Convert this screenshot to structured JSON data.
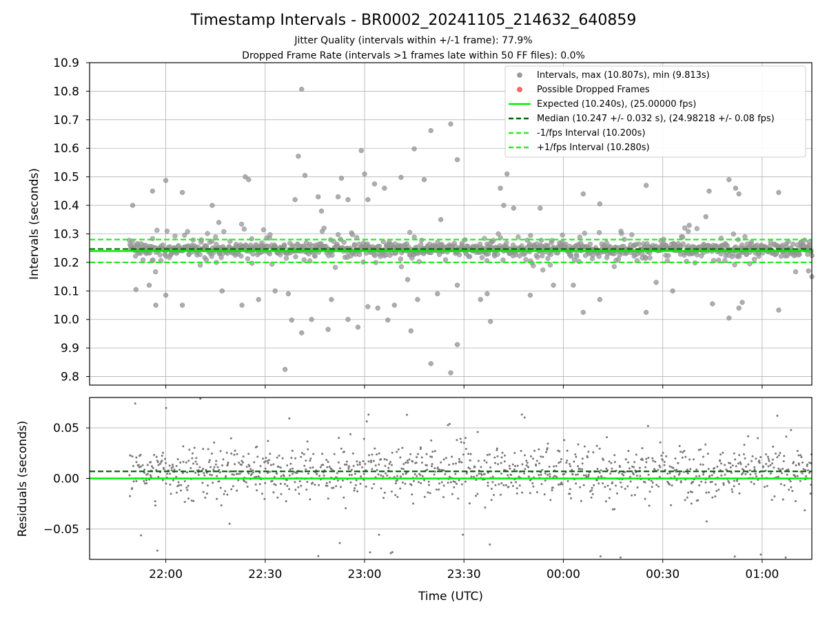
{
  "figure": {
    "title": "Timestamp Intervals - BR0002_20241105_214632_640859",
    "subtitle_1": "Jitter Quality (intervals within +/-1 frame): 77.9%",
    "subtitle_2": "Dropped Frame Rate (intervals >1 frames late within 50 FF files): 0.0%"
  },
  "chart_data": [
    {
      "type": "scatter",
      "panel": "top",
      "ylabel": "Intervals (seconds)",
      "ylim": [
        9.77,
        10.9
      ],
      "yticks": [
        "10.9",
        "10.8",
        "10.7",
        "10.6",
        "10.5",
        "10.4",
        "10.3",
        "10.2",
        "10.1",
        "10.0",
        "9.9",
        "9.8"
      ],
      "xlim": [
        "21:37",
        "01:15"
      ],
      "grid": true,
      "legend_position": "upper-right",
      "expected": 10.24,
      "median": 10.247,
      "minus_one": 10.2,
      "plus_one": 10.28,
      "legend": [
        "Intervals, max (10.807s), min (9.813s)",
        "Possible Dropped Frames",
        "Expected (10.240s), (25.00000 fps)",
        "Median (10.247 +/- 0.032 s), (24.98218 +/- 0.08 fps)",
        "-1/fps Interval (10.200s)",
        "+1/fps Interval (10.280s)"
      ],
      "series_color": "#999999",
      "outliers": [
        {
          "x": "22:41",
          "y": 10.807
        },
        {
          "x": "23:26",
          "y": 9.813
        },
        {
          "x": "23:20",
          "y": 9.845
        },
        {
          "x": "23:26",
          "y": 10.685
        },
        {
          "x": "23:20",
          "y": 10.662
        },
        {
          "x": "23:28",
          "y": 9.912
        },
        {
          "x": "22:36",
          "y": 9.825
        },
        {
          "x": "22:40",
          "y": 10.572
        },
        {
          "x": "22:38",
          "y": 9.998
        },
        {
          "x": "22:44",
          "y": 10.0
        },
        {
          "x": "23:14",
          "y": 9.96
        },
        {
          "x": "23:07",
          "y": 9.998
        },
        {
          "x": "22:00",
          "y": 10.487
        },
        {
          "x": "21:56",
          "y": 10.45
        },
        {
          "x": "22:05",
          "y": 10.445
        },
        {
          "x": "22:25",
          "y": 10.49
        },
        {
          "x": "22:24",
          "y": 10.5
        },
        {
          "x": "22:42",
          "y": 10.505
        },
        {
          "x": "22:53",
          "y": 10.495
        },
        {
          "x": "23:00",
          "y": 10.51
        },
        {
          "x": "23:11",
          "y": 10.498
        },
        {
          "x": "23:15",
          "y": 10.598
        },
        {
          "x": "22:59",
          "y": 10.592
        },
        {
          "x": "23:03",
          "y": 10.475
        },
        {
          "x": "23:18",
          "y": 10.49
        },
        {
          "x": "23:43",
          "y": 10.51
        },
        {
          "x": "23:41",
          "y": 10.46
        },
        {
          "x": "23:28",
          "y": 10.56
        },
        {
          "x": "22:39",
          "y": 10.42
        },
        {
          "x": "22:46",
          "y": 10.43
        },
        {
          "x": "22:52",
          "y": 10.43
        },
        {
          "x": "23:01",
          "y": 10.42
        },
        {
          "x": "23:06",
          "y": 10.46
        },
        {
          "x": "22:47",
          "y": 10.38
        },
        {
          "x": "22:55",
          "y": 10.42
        },
        {
          "x": "23:23",
          "y": 10.35
        },
        {
          "x": "22:14",
          "y": 10.4
        },
        {
          "x": "21:50",
          "y": 10.4
        },
        {
          "x": "22:16",
          "y": 10.34
        },
        {
          "x": "23:53",
          "y": 10.39
        },
        {
          "x": "23:45",
          "y": 10.39
        },
        {
          "x": "23:42",
          "y": 10.4
        },
        {
          "x": "00:06",
          "y": 10.44
        },
        {
          "x": "00:11",
          "y": 10.405
        },
        {
          "x": "00:25",
          "y": 10.47
        },
        {
          "x": "00:44",
          "y": 10.45
        },
        {
          "x": "00:50",
          "y": 10.49
        },
        {
          "x": "00:52",
          "y": 10.46
        },
        {
          "x": "00:53",
          "y": 10.44
        },
        {
          "x": "01:05",
          "y": 10.445
        },
        {
          "x": "00:38",
          "y": 10.33
        },
        {
          "x": "00:43",
          "y": 10.36
        },
        {
          "x": "21:51",
          "y": 10.105
        },
        {
          "x": "21:55",
          "y": 10.12
        },
        {
          "x": "21:57",
          "y": 10.05
        },
        {
          "x": "22:00",
          "y": 10.085
        },
        {
          "x": "22:05",
          "y": 10.05
        },
        {
          "x": "22:17",
          "y": 10.1
        },
        {
          "x": "22:23",
          "y": 10.05
        },
        {
          "x": "22:28",
          "y": 10.07
        },
        {
          "x": "22:33",
          "y": 10.1
        },
        {
          "x": "22:37",
          "y": 10.09
        },
        {
          "x": "22:41",
          "y": 9.953
        },
        {
          "x": "22:50",
          "y": 10.07
        },
        {
          "x": "22:55",
          "y": 10.0
        },
        {
          "x": "23:01",
          "y": 10.045
        },
        {
          "x": "22:58",
          "y": 9.973
        },
        {
          "x": "23:04",
          "y": 10.04
        },
        {
          "x": "23:09",
          "y": 10.05
        },
        {
          "x": "23:16",
          "y": 10.07
        },
        {
          "x": "23:22",
          "y": 10.09
        },
        {
          "x": "23:28",
          "y": 10.12
        },
        {
          "x": "23:35",
          "y": 10.07
        },
        {
          "x": "23:37",
          "y": 10.09
        },
        {
          "x": "23:38",
          "y": 9.993
        },
        {
          "x": "23:50",
          "y": 10.085
        },
        {
          "x": "23:57",
          "y": 10.12
        },
        {
          "x": "00:03",
          "y": 10.12
        },
        {
          "x": "00:06",
          "y": 10.025
        },
        {
          "x": "00:11",
          "y": 10.07
        },
        {
          "x": "00:25",
          "y": 10.025
        },
        {
          "x": "00:28",
          "y": 10.13
        },
        {
          "x": "00:33",
          "y": 10.1
        },
        {
          "x": "00:45",
          "y": 10.055
        },
        {
          "x": "00:50",
          "y": 10.005
        },
        {
          "x": "00:53",
          "y": 10.04
        },
        {
          "x": "00:54",
          "y": 10.06
        },
        {
          "x": "01:05",
          "y": 10.033
        },
        {
          "x": "01:15",
          "y": 10.15
        },
        {
          "x": "01:14",
          "y": 10.17
        },
        {
          "x": "22:49",
          "y": 9.965
        },
        {
          "x": "23:13",
          "y": 10.14
        }
      ]
    },
    {
      "type": "scatter",
      "panel": "bottom",
      "ylabel": "Residuals (seconds)",
      "xlabel": "Time (UTC)",
      "ylim": [
        -0.08,
        0.08
      ],
      "yticks": [
        "0.05",
        "0.00",
        "−0.05"
      ],
      "xticks": [
        "22:00",
        "22:30",
        "23:00",
        "23:30",
        "00:00",
        "00:30",
        "01:00"
      ],
      "xlim": [
        "21:37",
        "01:15"
      ],
      "grid": true,
      "zero_line": 0.0,
      "median_line": 0.007,
      "series_color": "#777777"
    }
  ],
  "colors": {
    "expected": "#00ee00",
    "median": "#006400",
    "fps_bounds": "#22ee22",
    "dropped": "#ff5555",
    "points_top": "#999999",
    "points_bottom": "#777777"
  }
}
